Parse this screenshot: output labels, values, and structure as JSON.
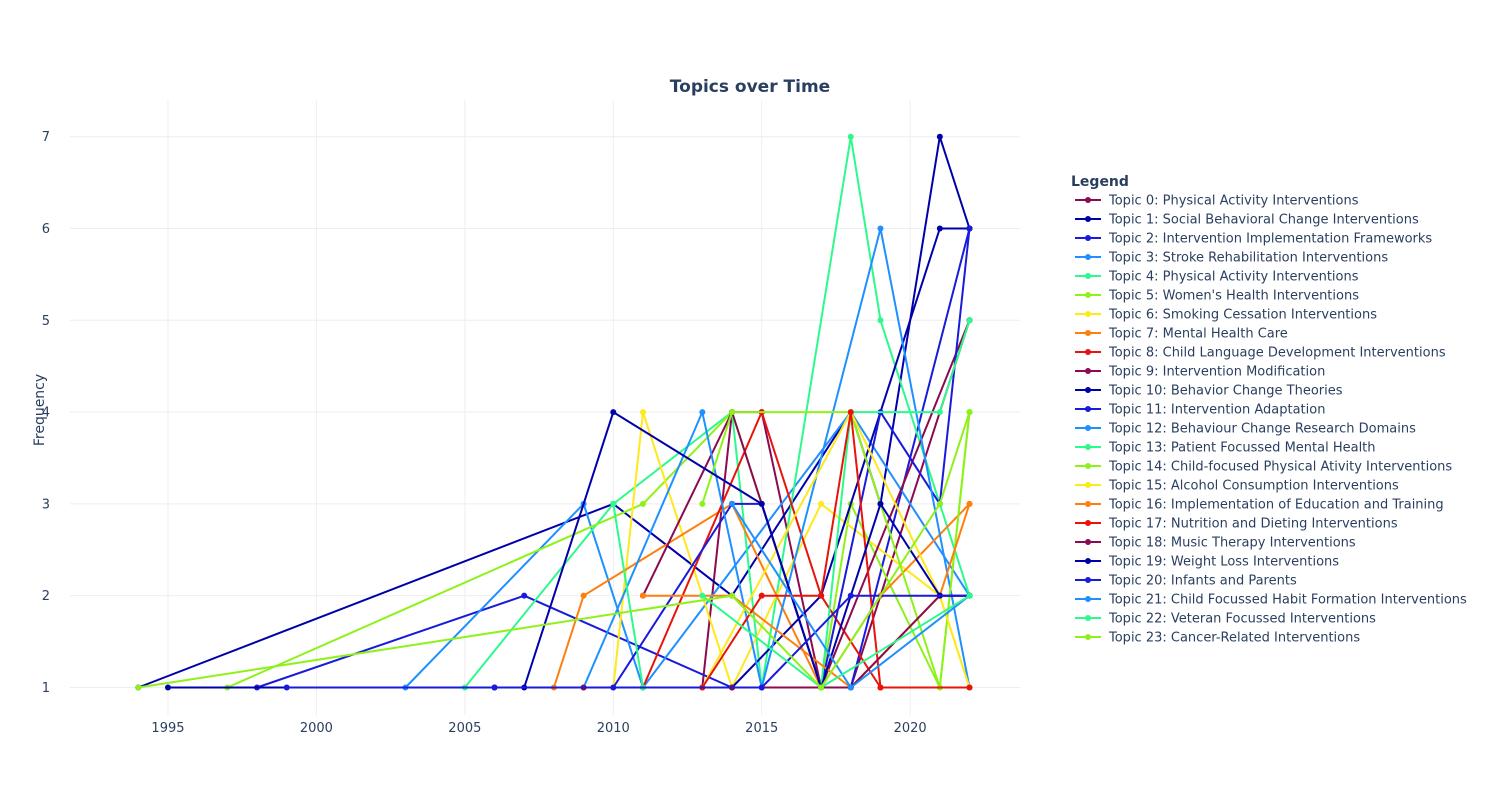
{
  "chart_data": {
    "type": "line",
    "title": "Topics over Time",
    "xlabel": "",
    "ylabel": "Frequency",
    "xlim": [
      1991.7,
      2023.7
    ],
    "ylim": [
      0.7,
      7.4
    ],
    "x_ticks": [
      1995,
      2000,
      2005,
      2010,
      2015,
      2020
    ],
    "y_ticks": [
      1,
      2,
      3,
      4,
      5,
      6,
      7
    ],
    "grid": true,
    "legend_title": "Legend",
    "legend_position": "right",
    "series": [
      {
        "name": "Topic 0: Physical Activity Interventions",
        "color": "#8b0a50",
        "x": [
          2013,
          2014,
          2015,
          2017,
          2018,
          2022
        ],
        "y": [
          1,
          4,
          4,
          1,
          1,
          5
        ]
      },
      {
        "name": "Topic 1: Social Behavioral Change Interventions",
        "color": "#0000aa",
        "x": [
          1994,
          2010,
          2014,
          2018,
          2019,
          2021,
          2022
        ],
        "y": [
          1,
          3,
          2,
          4,
          3,
          7,
          6
        ]
      },
      {
        "name": "Topic 2: Intervention Implementation Frameworks",
        "color": "#1a1adb",
        "x": [
          1998,
          2007,
          2014,
          2018,
          2022
        ],
        "y": [
          1,
          2,
          1,
          1,
          6
        ]
      },
      {
        "name": "Topic 3: Stroke Rehabilitation Interventions",
        "color": "#1e90ff",
        "x": [
          2003,
          2009,
          2011,
          2018,
          2022
        ],
        "y": [
          1,
          3,
          1,
          4,
          2
        ]
      },
      {
        "name": "Topic 4: Physical Activity Interventions",
        "color": "#2dfa8c",
        "x": [
          2005,
          2010,
          2014,
          2015,
          2018,
          2019,
          2022
        ],
        "y": [
          1,
          3,
          4,
          1,
          7,
          5,
          2
        ]
      },
      {
        "name": "Topic 5: Women's Health Interventions",
        "color": "#8ef21a",
        "x": [
          1997,
          2011,
          2014,
          2017,
          2018,
          2021,
          2022
        ],
        "y": [
          1,
          3,
          4,
          1,
          3,
          1,
          4
        ]
      },
      {
        "name": "Topic 6: Smoking Cessation Interventions",
        "color": "#ffe81c",
        "x": [
          2010,
          2011,
          2014,
          2017,
          2021,
          2022
        ],
        "y": [
          1,
          4,
          1,
          3,
          2,
          1
        ]
      },
      {
        "name": "Topic 7: Mental Health Care",
        "color": "#ff7f0e",
        "x": [
          2008,
          2009,
          2014,
          2017,
          2019,
          2022
        ],
        "y": [
          1,
          2,
          3,
          1,
          2,
          3
        ]
      },
      {
        "name": "Topic 8: Child Language Development Interventions",
        "color": "#e8140a",
        "x": [
          2011,
          2015,
          2017,
          2019,
          2022
        ],
        "y": [
          1,
          4,
          2,
          1,
          1
        ]
      },
      {
        "name": "Topic 9: Intervention Modification",
        "color": "#8b0a50",
        "x": [
          2011,
          2014,
          2017,
          2022
        ],
        "y": [
          2,
          4,
          1,
          5
        ]
      },
      {
        "name": "Topic 10: Behavior Change Theories",
        "color": "#0000aa",
        "x": [
          1995,
          2014,
          2017,
          2021,
          2022
        ],
        "y": [
          1,
          1,
          2,
          6,
          6
        ]
      },
      {
        "name": "Topic 11: Intervention Adaptation",
        "color": "#1a1adb",
        "x": [
          1999,
          2010,
          2014,
          2015,
          2017,
          2019,
          2021,
          2022
        ],
        "y": [
          1,
          1,
          3,
          3,
          1,
          4,
          3,
          6
        ]
      },
      {
        "name": "Topic 12: Behaviour Change Research Domains",
        "color": "#1e90ff",
        "x": [
          2009,
          2013,
          2015,
          2019,
          2022
        ],
        "y": [
          1,
          4,
          1,
          6,
          1
        ]
      },
      {
        "name": "Topic 13: Patient Focussed Mental Health",
        "color": "#2dfa8c",
        "x": [
          2010,
          2011,
          2017,
          2018,
          2021,
          2022
        ],
        "y": [
          3,
          1,
          1,
          4,
          4,
          5
        ]
      },
      {
        "name": "Topic 14: Child-focused Physical Ativity Interventions",
        "color": "#8ef21a",
        "x": [
          2013,
          2014,
          2018,
          2021,
          2022
        ],
        "y": [
          3,
          4,
          4,
          1,
          4
        ]
      },
      {
        "name": "Topic 15: Alcohol Consumption Interventions",
        "color": "#ffe81c",
        "x": [
          2009,
          2013,
          2018,
          2021,
          2022
        ],
        "y": [
          1,
          1,
          4,
          2,
          1
        ]
      },
      {
        "name": "Topic 16: Implementation of Education and Training",
        "color": "#ff7f0e",
        "x": [
          2011,
          2014,
          2018,
          2021,
          2022
        ],
        "y": [
          2,
          2,
          1,
          2,
          3
        ]
      },
      {
        "name": "Topic 17: Nutrition and Dieting Interventions",
        "color": "#e8140a",
        "x": [
          2013,
          2015,
          2017,
          2018,
          2019,
          2022
        ],
        "y": [
          1,
          2,
          2,
          4,
          1,
          1
        ]
      },
      {
        "name": "Topic 18: Music Therapy Interventions",
        "color": "#8b0a50",
        "x": [
          2009,
          2014,
          2018,
          2021,
          2022
        ],
        "y": [
          1,
          1,
          1,
          2,
          2
        ]
      },
      {
        "name": "Topic 19: Weight Loss Interventions",
        "color": "#0000aa",
        "x": [
          2006,
          2007,
          2010,
          2015,
          2017,
          2019,
          2021,
          2022
        ],
        "y": [
          1,
          1,
          4,
          3,
          1,
          3,
          2,
          2
        ]
      },
      {
        "name": "Topic 20: Infants and Parents",
        "color": "#1a1adb",
        "x": [
          2006,
          2015,
          2018,
          2022
        ],
        "y": [
          1,
          1,
          2,
          2
        ]
      },
      {
        "name": "Topic 21: Child Focussed Habit Formation Interventions",
        "color": "#1e90ff",
        "x": [
          2014,
          2018,
          2022
        ],
        "y": [
          3,
          1,
          2
        ]
      },
      {
        "name": "Topic 22: Veteran Focussed Interventions",
        "color": "#2dfa8c",
        "x": [
          2013,
          2017,
          2022
        ],
        "y": [
          2,
          1,
          2
        ]
      },
      {
        "name": "Topic 23: Cancer-Related Interventions",
        "color": "#8ef21a",
        "x": [
          1994,
          2014,
          2017,
          2021,
          2022
        ],
        "y": [
          1,
          2,
          1,
          3,
          4
        ]
      }
    ]
  }
}
